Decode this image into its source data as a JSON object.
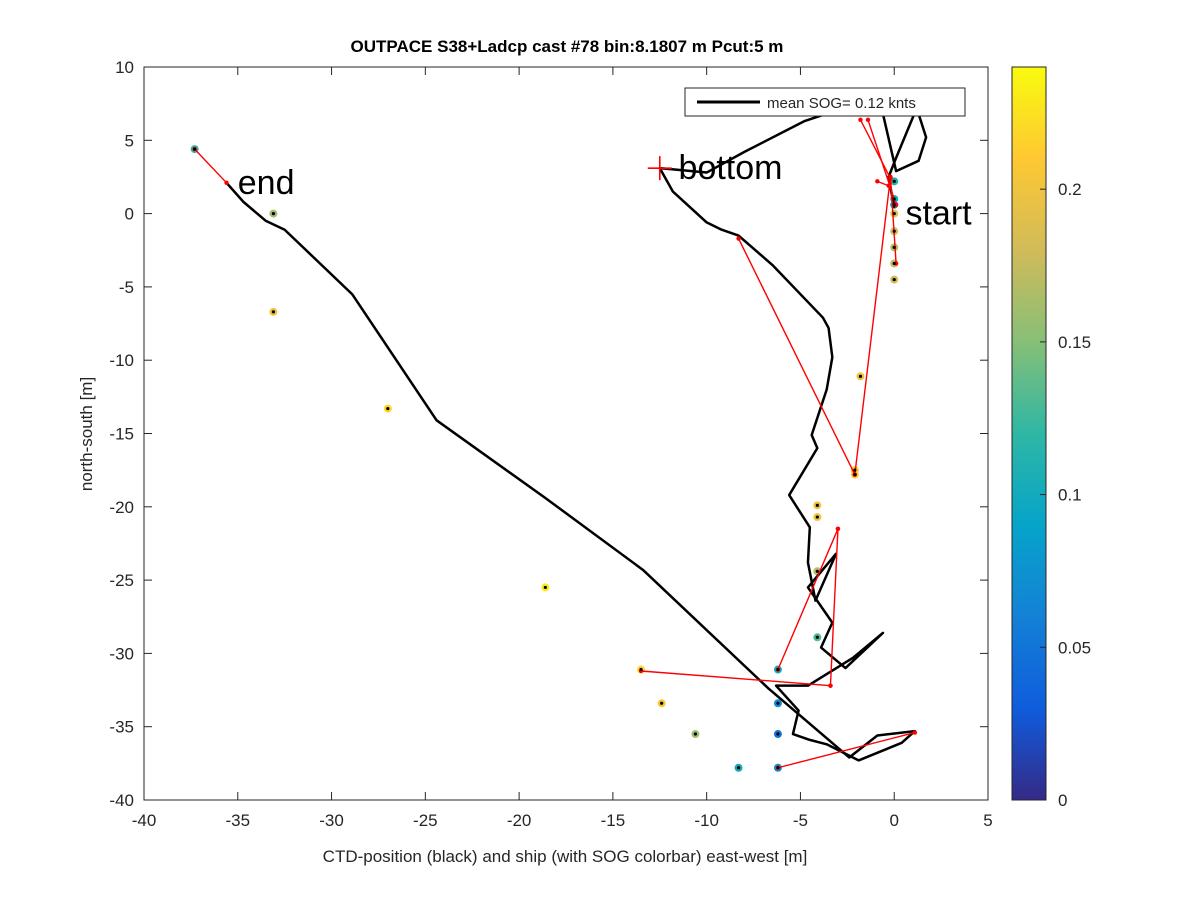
{
  "chart_data": {
    "type": "scatter",
    "title": "OUTPACE S38+Ladcp cast #78 bin:8.1807 m  Pcut:5 m",
    "xlabel": "CTD-position (black) and ship (with SOG colorbar) east-west [m]",
    "ylabel": "north-south [m]",
    "xlim": [
      -40,
      5
    ],
    "ylim": [
      -40,
      10
    ],
    "xticks": [
      "-40",
      "-35",
      "-30",
      "-25",
      "-20",
      "-15",
      "-10",
      "-5",
      "0",
      "5"
    ],
    "yticks": [
      "-40",
      "-35",
      "-30",
      "-25",
      "-20",
      "-15",
      "-10",
      "-5",
      "0",
      "5",
      "10"
    ],
    "grid": false,
    "legend": {
      "position": "top-right",
      "entries": [
        "mean SOG=  0.12 knts"
      ]
    },
    "colorbar": {
      "range": [
        0,
        0.24
      ],
      "ticks": [
        "0",
        "0.05",
        "0.1",
        "0.15",
        "0.2"
      ],
      "colormap": [
        "#352a87",
        "#0f5cdd",
        "#1481d6",
        "#06a4ca",
        "#2eb7a4",
        "#87bf77",
        "#d1bb59",
        "#fec832",
        "#f9fb0e"
      ]
    },
    "annotations": [
      {
        "text": "start",
        "x": 0.6,
        "y": 0
      },
      {
        "text": "bottom",
        "x": -11.5,
        "y": 3.1
      },
      {
        "text": "end",
        "x": -35,
        "y": 2.1
      }
    ],
    "bottom_marker": {
      "x": -12.5,
      "y": 3.1,
      "color": "#ff0000"
    },
    "series": [
      {
        "name": "mean SOG=  0.12 knts",
        "type": "line",
        "color": "#000000",
        "x": [
          0,
          -0.3,
          0.1,
          1.2,
          1.7,
          1.3,
          0.1,
          -0.6,
          -2,
          -4.8,
          -8,
          -10,
          -12.5,
          -11.8,
          -10,
          -9.2,
          -8.3,
          -6.5,
          -3.8,
          -3.5,
          -3.3,
          -3.6,
          -4.4,
          -4.1,
          -5.6,
          -4.5,
          -4.6,
          -4.2,
          -3.1,
          -4.6,
          -3.3,
          -3.9,
          -2.6,
          -0.6,
          -2.2,
          -4.6,
          -6.3,
          -5.1,
          -5.4,
          -4.5,
          -3.6,
          -1.9,
          0.4,
          1.1,
          -0.9,
          -2.4,
          -6.7,
          -13.4,
          -18.6,
          -24.4,
          -28.9,
          -32.5,
          -33.5,
          -34.7,
          -35.6
        ],
        "y": [
          0.4,
          2.5,
          3.8,
          7.2,
          5.2,
          3.6,
          2.9,
          6.8,
          7.5,
          6.3,
          4.2,
          2.8,
          3.1,
          1.5,
          -0.6,
          -1.1,
          -1.5,
          -3.5,
          -7.1,
          -7.8,
          -9.8,
          -12,
          -15.1,
          -16,
          -19.2,
          -21.4,
          -23.8,
          -26.4,
          -23.2,
          -25.5,
          -27.9,
          -29.6,
          -31,
          -28.6,
          -30.3,
          -32.2,
          -32.2,
          -33.9,
          -35.5,
          -35.9,
          -36.2,
          -37.3,
          -36.1,
          -35.3,
          -35.6,
          -37.1,
          -32.4,
          -24.3,
          -19.4,
          -14.1,
          -5.5,
          -1.1,
          -0.5,
          0.8,
          2.1
        ]
      },
      {
        "name": "",
        "type": "line-segments",
        "color": "#ff0000",
        "segments": [
          [
            [
              -37.3,
              4.4
            ],
            [
              -35.6,
              2.1
            ]
          ],
          [
            [
              0.1,
              -3.4
            ],
            [
              -0.2,
              2.5
            ]
          ],
          [
            [
              -1.8,
              6.4
            ],
            [
              -0.2,
              2.4
            ]
          ],
          [
            [
              -1.4,
              6.4
            ],
            [
              0.1,
              0.6
            ]
          ],
          [
            [
              -0.9,
              2.2
            ],
            [
              -0.3,
              1.9
            ]
          ],
          [
            [
              -8.3,
              -1.7
            ],
            [
              -2.1,
              -17.8
            ]
          ],
          [
            [
              -2.1,
              -17.8
            ],
            [
              -0.2,
              2.5
            ]
          ],
          [
            [
              -6.2,
              -31.1
            ],
            [
              -3,
              -21.5
            ]
          ],
          [
            [
              -3,
              -21.5
            ],
            [
              -3.4,
              -32.2
            ]
          ],
          [
            [
              -13.5,
              -31.2
            ],
            [
              -3.4,
              -32.2
            ]
          ],
          [
            [
              -6.2,
              -37.8
            ],
            [
              1.1,
              -35.4
            ]
          ]
        ]
      },
      {
        "name": "",
        "type": "scatter",
        "points": [
          {
            "x": -37.3,
            "y": 4.4,
            "sog": 0.12
          },
          {
            "x": -33.1,
            "y": 0,
            "sog": 0.16
          },
          {
            "x": -33.1,
            "y": -6.7,
            "sog": 0.2
          },
          {
            "x": -27.0,
            "y": -13.3,
            "sog": 0.22
          },
          {
            "x": -18.6,
            "y": -25.5,
            "sog": 0.23
          },
          {
            "x": -13.5,
            "y": -31.1,
            "sog": 0.22
          },
          {
            "x": -12.4,
            "y": -33.4,
            "sog": 0.21
          },
          {
            "x": -10.6,
            "y": -35.5,
            "sog": 0.16
          },
          {
            "x": -8.3,
            "y": -37.8,
            "sog": 0.1
          },
          {
            "x": -6.2,
            "y": -37.8,
            "sog": 0.07
          },
          {
            "x": -6.2,
            "y": -35.5,
            "sog": 0.05
          },
          {
            "x": -6.2,
            "y": -33.4,
            "sog": 0.07
          },
          {
            "x": -6.2,
            "y": -31.1,
            "sog": 0.1
          },
          {
            "x": -4.1,
            "y": -28.9,
            "sog": 0.13
          },
          {
            "x": -4.1,
            "y": -24.4,
            "sog": 0.17
          },
          {
            "x": -4.1,
            "y": -20.7,
            "sog": 0.2
          },
          {
            "x": -4.1,
            "y": -19.9,
            "sog": 0.2
          },
          {
            "x": -2.1,
            "y": -17.8,
            "sog": 0.21
          },
          {
            "x": -2.1,
            "y": -17.5,
            "sog": 0.21
          },
          {
            "x": -1.8,
            "y": -11.1,
            "sog": 0.2
          },
          {
            "x": 0,
            "y": -4.5,
            "sog": 0.18
          },
          {
            "x": 0,
            "y": -3.4,
            "sog": 0.17
          },
          {
            "x": 0,
            "y": -2.3,
            "sog": 0.17
          },
          {
            "x": 0,
            "y": -1.2,
            "sog": 0.18
          },
          {
            "x": 0,
            "y": 0,
            "sog": 0.19
          },
          {
            "x": 0,
            "y": 0.6,
            "sog": 0.09
          },
          {
            "x": 0,
            "y": 1.0,
            "sog": 0.1
          },
          {
            "x": 0,
            "y": 2.2,
            "sog": 0.11
          }
        ]
      }
    ]
  }
}
